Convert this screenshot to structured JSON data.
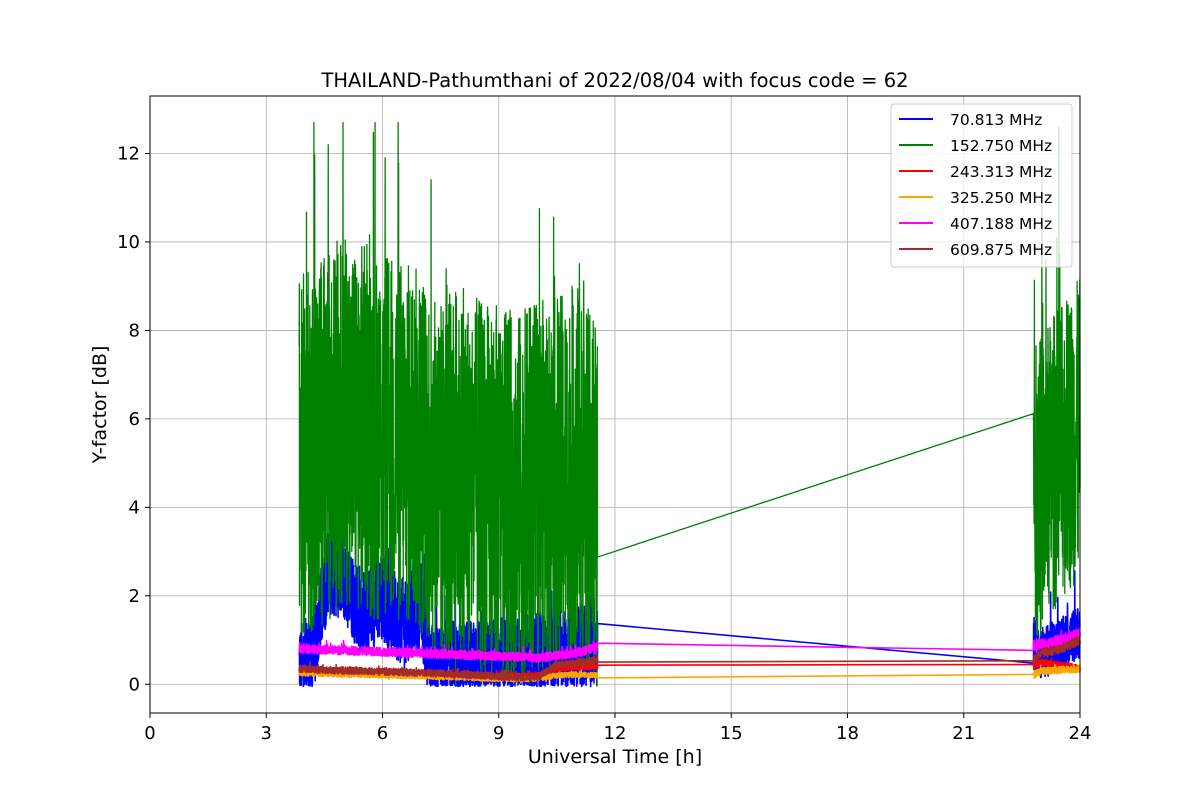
{
  "chart_data": {
    "type": "line",
    "title": "THAILAND-Pathumthani of 2022/08/04 with focus code = 62",
    "xlabel": "Universal Time [h]",
    "ylabel": "Y-factor [dB]",
    "xlim": [
      0,
      24
    ],
    "ylim": [
      -0.65,
      13.3
    ],
    "xticks": [
      0,
      3,
      6,
      9,
      12,
      15,
      18,
      21,
      24
    ],
    "yticks": [
      0,
      2,
      4,
      6,
      8,
      10,
      12
    ],
    "grid": true,
    "legend_position": "top-right",
    "series": [
      {
        "name": " 70.813 MHz",
        "color": "#0000ff",
        "points": [
          [
            3.85,
            0.4
          ],
          [
            4.2,
            0.6
          ],
          [
            4.6,
            2.6
          ],
          [
            5.0,
            2.4
          ],
          [
            5.5,
            1.6
          ],
          [
            6.0,
            2.0
          ],
          [
            6.5,
            1.4
          ],
          [
            7.0,
            1.8
          ],
          [
            7.2,
            0.5
          ],
          [
            8.0,
            0.4
          ],
          [
            9.0,
            0.5
          ],
          [
            10.0,
            0.6
          ],
          [
            10.8,
            0.7
          ],
          [
            11.3,
            0.9
          ],
          [
            11.55,
            0.95
          ],
          [
            22.8,
            1.0
          ],
          [
            23.0,
            0.7
          ],
          [
            23.5,
            0.9
          ],
          [
            24.0,
            1.2
          ]
        ]
      },
      {
        "name": "152.750 MHz",
        "color": "#008000",
        "points": [
          [
            3.85,
            5.0
          ],
          [
            4.3,
            5.4
          ],
          [
            4.8,
            5.8
          ],
          [
            5.2,
            6.0
          ],
          [
            5.8,
            5.6
          ],
          [
            6.5,
            5.5
          ],
          [
            7.0,
            5.2
          ],
          [
            7.5,
            4.6
          ],
          [
            8.0,
            4.8
          ],
          [
            8.5,
            4.5
          ],
          [
            9.0,
            4.4
          ],
          [
            9.5,
            4.2
          ],
          [
            10.0,
            4.5
          ],
          [
            10.5,
            4.6
          ],
          [
            11.0,
            4.8
          ],
          [
            11.55,
            4.05
          ],
          [
            22.8,
            4.18
          ],
          [
            23.3,
            5.0
          ],
          [
            24.0,
            5.8
          ]
        ],
        "annotations_peak": 12.7
      },
      {
        "name": "243.313 MHz",
        "color": "#ff0000",
        "points": [
          [
            3.85,
            0.3
          ],
          [
            5.0,
            0.28
          ],
          [
            6.0,
            0.26
          ],
          [
            7.0,
            0.24
          ],
          [
            8.0,
            0.2
          ],
          [
            9.0,
            0.18
          ],
          [
            10.0,
            0.2
          ],
          [
            10.5,
            0.35
          ],
          [
            11.0,
            0.38
          ],
          [
            11.55,
            0.4
          ],
          [
            22.8,
            0.4
          ],
          [
            23.0,
            0.5
          ],
          [
            24.0,
            0.35
          ]
        ]
      },
      {
        "name": "325.250 MHz",
        "color": "#ffa500",
        "points": [
          [
            3.85,
            0.25
          ],
          [
            5.0,
            0.22
          ],
          [
            6.0,
            0.2
          ],
          [
            7.0,
            0.18
          ],
          [
            8.0,
            0.15
          ],
          [
            9.0,
            0.12
          ],
          [
            10.0,
            0.12
          ],
          [
            10.5,
            0.2
          ],
          [
            11.0,
            0.22
          ],
          [
            11.55,
            0.2
          ],
          [
            22.8,
            0.2
          ],
          [
            23.0,
            0.3
          ],
          [
            24.0,
            0.35
          ]
        ]
      },
      {
        "name": "407.188 MHz",
        "color": "#ff00ff",
        "points": [
          [
            3.85,
            0.8
          ],
          [
            4.5,
            0.78
          ],
          [
            5.5,
            0.75
          ],
          [
            6.5,
            0.72
          ],
          [
            7.5,
            0.68
          ],
          [
            8.5,
            0.65
          ],
          [
            9.5,
            0.62
          ],
          [
            10.0,
            0.6
          ],
          [
            10.5,
            0.65
          ],
          [
            11.0,
            0.7
          ],
          [
            11.55,
            0.85
          ],
          [
            22.8,
            0.88
          ],
          [
            23.0,
            0.9
          ],
          [
            23.5,
            1.0
          ],
          [
            24.0,
            1.15
          ]
        ]
      },
      {
        "name": "609.875 MHz",
        "color": "#a52a2a",
        "points": [
          [
            3.85,
            0.35
          ],
          [
            4.5,
            0.32
          ],
          [
            5.5,
            0.3
          ],
          [
            6.5,
            0.27
          ],
          [
            7.5,
            0.24
          ],
          [
            8.5,
            0.2
          ],
          [
            9.5,
            0.15
          ],
          [
            10.0,
            0.15
          ],
          [
            10.5,
            0.45
          ],
          [
            11.0,
            0.48
          ],
          [
            11.55,
            0.55
          ],
          [
            22.8,
            0.55
          ],
          [
            23.0,
            0.7
          ],
          [
            23.5,
            0.8
          ],
          [
            24.0,
            1.0
          ]
        ]
      }
    ]
  }
}
